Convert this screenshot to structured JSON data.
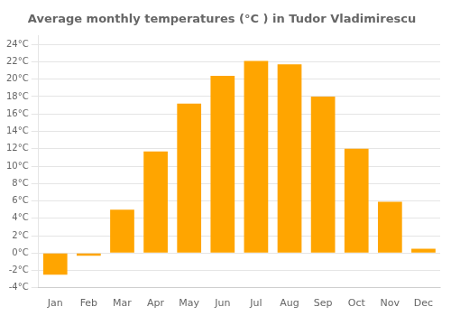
{
  "chart_data": {
    "type": "bar",
    "title": "Average monthly temperatures (°C ) in Tudor Vladimirescu",
    "categories": [
      "Jan",
      "Feb",
      "Mar",
      "Apr",
      "May",
      "Jun",
      "Jul",
      "Aug",
      "Sep",
      "Oct",
      "Nov",
      "Dec"
    ],
    "values": [
      -2.5,
      -0.3,
      5.0,
      11.7,
      17.2,
      20.4,
      22.1,
      21.7,
      18.0,
      12.0,
      5.9,
      0.5
    ],
    "color": "#FFA500",
    "ylim": [
      -4,
      25
    ],
    "yticks": [
      {
        "value": -4,
        "label": "-4°C"
      },
      {
        "value": -2,
        "label": "-2°C"
      },
      {
        "value": 0,
        "label": "0°C"
      },
      {
        "value": 2,
        "label": "2°C"
      },
      {
        "value": 4,
        "label": "4°C"
      },
      {
        "value": 6,
        "label": "6°C"
      },
      {
        "value": 8,
        "label": "8°C"
      },
      {
        "value": 10,
        "label": "10°C"
      },
      {
        "value": 12,
        "label": "12°C"
      },
      {
        "value": 14,
        "label": "14°C"
      },
      {
        "value": 16,
        "label": "16°C"
      },
      {
        "value": 18,
        "label": "18°C"
      },
      {
        "value": 20,
        "label": "20°C"
      },
      {
        "value": 22,
        "label": "22°C"
      },
      {
        "value": 24,
        "label": "24°C"
      }
    ],
    "grid": true
  }
}
